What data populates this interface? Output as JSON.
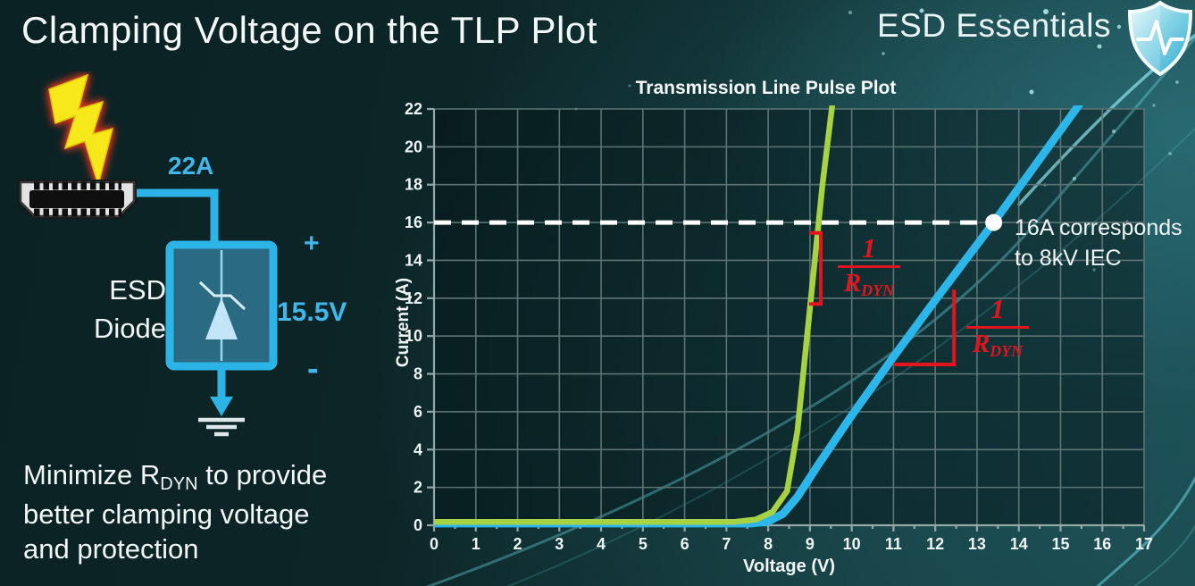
{
  "slide": {
    "title": "Clamping Voltage on the TLP Plot",
    "brand": "ESD Essentials",
    "note": {
      "pre": "Minimize R",
      "sub": "DYN",
      "post": " to provide",
      "line2": "better clamping voltage",
      "line3": "and protection"
    }
  },
  "diagram": {
    "surge_current": "22A",
    "component_line1": "ESD",
    "component_line2": "Diode",
    "clamp_voltage": "15.5V",
    "plus": "+",
    "minus": "-"
  },
  "chart_data": {
    "type": "line",
    "title": "Transmission Line Pulse Plot",
    "xlabel": "Voltage (V)",
    "ylabel": "Current (A)",
    "xlim": [
      0,
      17
    ],
    "ylim": [
      0,
      22
    ],
    "x_ticks": [
      0,
      1,
      2,
      3,
      4,
      5,
      6,
      7,
      8,
      9,
      10,
      11,
      12,
      13,
      14,
      15,
      16,
      17
    ],
    "y_ticks": [
      0,
      2,
      4,
      6,
      8,
      10,
      12,
      14,
      16,
      18,
      20,
      22
    ],
    "grid": {
      "vertical_every_V": 1,
      "horizontal_every_A": 2,
      "color": "#5e7474"
    },
    "series": [
      {
        "name": "blue-curve-higher-rdyn",
        "color": "#2cb6e9",
        "width": 9,
        "points": [
          [
            0,
            0.1
          ],
          [
            7.6,
            0.1
          ],
          [
            8.0,
            0.2
          ],
          [
            8.35,
            0.6
          ],
          [
            8.7,
            1.5
          ],
          [
            9.2,
            3.2
          ],
          [
            10,
            5.8
          ],
          [
            11,
            8.9
          ],
          [
            12,
            11.9
          ],
          [
            13.4,
            16
          ],
          [
            15.5,
            22.4
          ]
        ]
      },
      {
        "name": "green-curve-lower-rdyn",
        "color": "#a6d243",
        "width": 6.5,
        "points": [
          [
            0,
            0.18
          ],
          [
            7.2,
            0.18
          ],
          [
            7.7,
            0.3
          ],
          [
            8.1,
            0.7
          ],
          [
            8.45,
            1.8
          ],
          [
            8.7,
            5
          ],
          [
            9.0,
            11.5
          ],
          [
            9.3,
            18
          ],
          [
            9.55,
            22.5
          ]
        ]
      }
    ],
    "reference_line": {
      "y": 16,
      "x_start": 0,
      "x_end": 13.35,
      "color": "#ffffff",
      "style": "dashed"
    },
    "marker": {
      "x": 13.4,
      "y": 16,
      "color": "#ffffff",
      "label_line1": "16A corresponds",
      "label_line2": "to 8kV IEC"
    },
    "annotations": {
      "color": "#e2151f",
      "slope_label_numerator": "1",
      "slope_label_base": "R",
      "slope_label_sub": "DYN",
      "bracket_green": [
        [
          8.98,
          15.45
        ],
        [
          9.26,
          15.45
        ],
        [
          9.26,
          11.7
        ],
        [
          8.98,
          11.7
        ]
      ],
      "bracket_blue": [
        [
          11.0,
          8.5
        ],
        [
          12.45,
          8.5
        ],
        [
          12.45,
          12.45
        ]
      ]
    }
  }
}
